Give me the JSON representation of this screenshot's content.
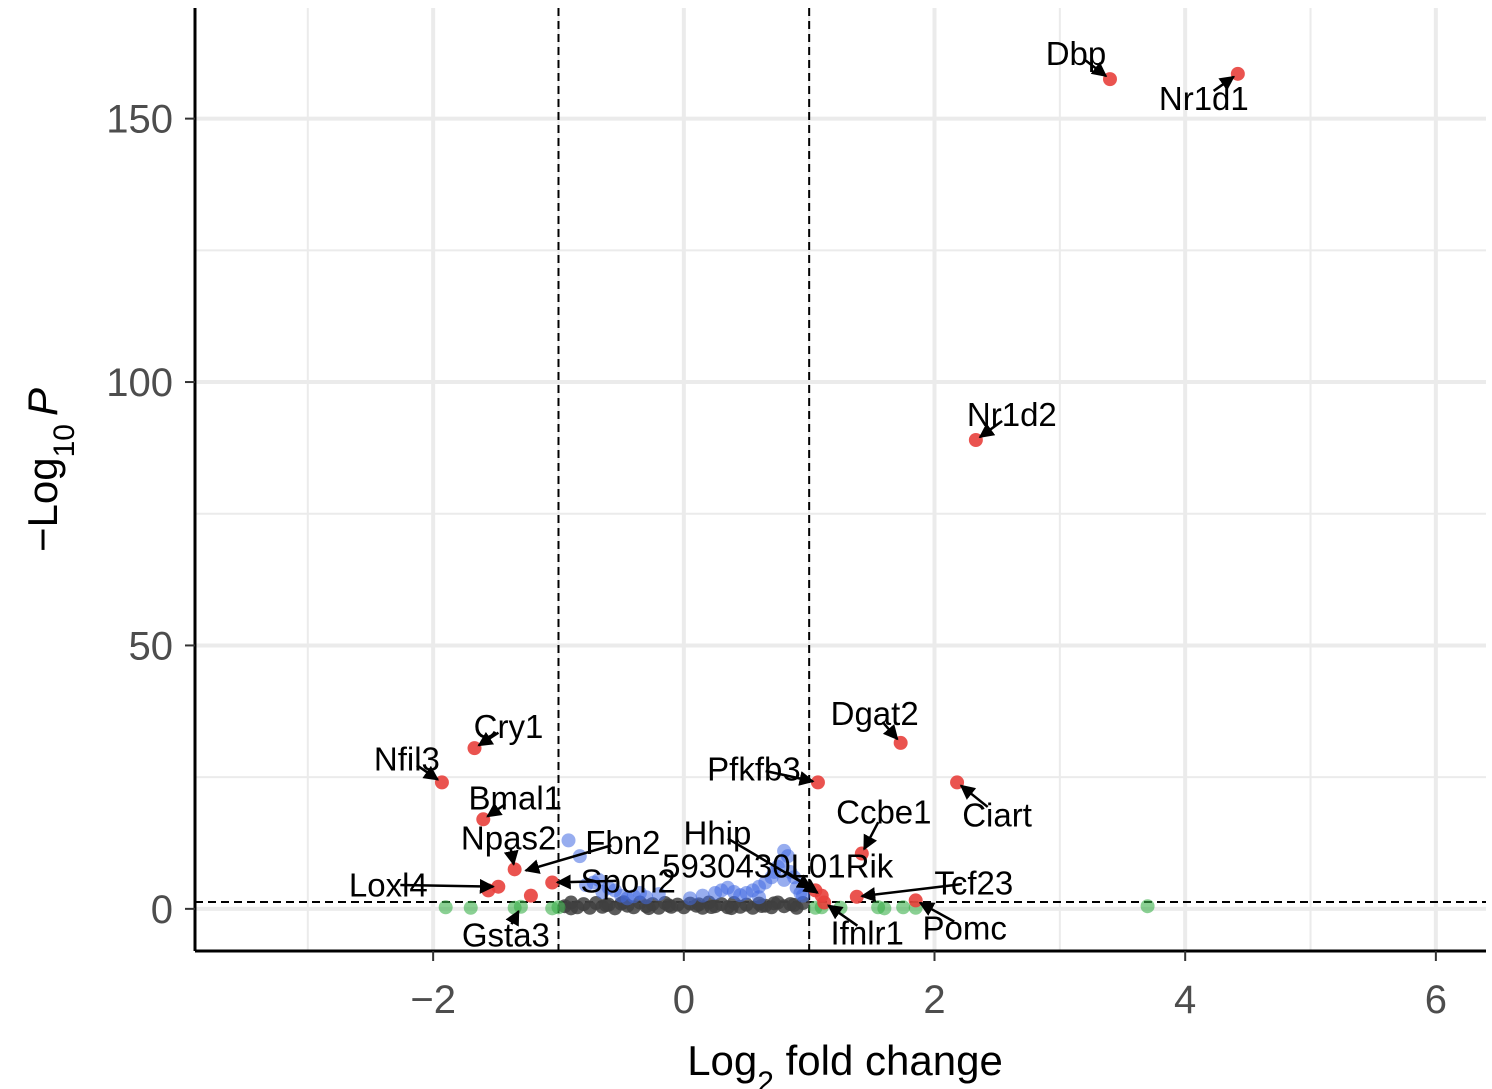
{
  "chart_data": {
    "type": "scatter",
    "title": "",
    "xlabel": "Log2 fold change",
    "xlabel_parts": {
      "pre": "Log",
      "sub": "2",
      "post": " fold change"
    },
    "ylabel": "−Log10 P",
    "ylabel_parts": {
      "pre": "−Log",
      "sub": "10",
      "post": "P"
    },
    "xlim": [
      -3.9,
      6.4
    ],
    "ylim": [
      -8,
      171
    ],
    "xticks": [
      -2,
      0,
      2,
      4,
      6
    ],
    "xtick_labels": [
      "−2",
      "0",
      "2",
      "4",
      "6"
    ],
    "yticks": [
      0,
      50,
      100,
      150
    ],
    "ytick_labels": [
      "0",
      "50",
      "100",
      "150"
    ],
    "grid": true,
    "legend": "none",
    "thresholds": {
      "fc": [
        -1,
        1
      ],
      "p": 1.3
    },
    "colors": {
      "ns": "#404040",
      "log2fc": "#3cb04b",
      "p": "#4169e1",
      "p_and_log2fc": "#e8403c",
      "axis": "#000000",
      "grid": "#ebebeb",
      "threshold_line": "#000000"
    },
    "series": [
      {
        "category": "ns",
        "points": [
          [
            -0.95,
            0.5
          ],
          [
            -0.9,
            1.2
          ],
          [
            -0.85,
            0.3
          ],
          [
            -0.8,
            0.9
          ],
          [
            -0.75,
            0.2
          ],
          [
            -0.7,
            1.1
          ],
          [
            -0.65,
            0.4
          ],
          [
            -0.6,
            0.8
          ],
          [
            -0.55,
            0.1
          ],
          [
            -0.5,
            1.0
          ],
          [
            -0.45,
            0.6
          ],
          [
            -0.4,
            0.3
          ],
          [
            -0.35,
            1.2
          ],
          [
            -0.3,
            0.5
          ],
          [
            -0.25,
            0.9
          ],
          [
            -0.2,
            0.2
          ],
          [
            -0.15,
            1.1
          ],
          [
            -0.1,
            0.4
          ],
          [
            -0.05,
            0.8
          ],
          [
            0.0,
            0.3
          ],
          [
            0.05,
            1.0
          ],
          [
            0.1,
            0.6
          ],
          [
            0.15,
            0.2
          ],
          [
            0.2,
            1.2
          ],
          [
            0.25,
            0.5
          ],
          [
            0.3,
            0.9
          ],
          [
            0.35,
            0.3
          ],
          [
            0.4,
            1.1
          ],
          [
            0.45,
            0.4
          ],
          [
            0.5,
            0.8
          ],
          [
            0.55,
            0.2
          ],
          [
            0.6,
            1.0
          ],
          [
            0.65,
            0.6
          ],
          [
            0.7,
            0.3
          ],
          [
            0.75,
            1.2
          ],
          [
            0.8,
            0.5
          ],
          [
            0.85,
            0.9
          ],
          [
            0.9,
            0.2
          ],
          [
            0.95,
            1.1
          ],
          [
            -0.9,
            0.1
          ],
          [
            -0.62,
            0.7
          ],
          [
            -0.28,
            0.15
          ],
          [
            0.12,
            0.85
          ],
          [
            0.38,
            0.15
          ],
          [
            0.62,
            0.55
          ],
          [
            0.88,
            0.75
          ],
          [
            -0.48,
            1.25
          ],
          [
            0.22,
            0.35
          ],
          [
            0.72,
            1.05
          ],
          [
            -0.12,
            0.65
          ]
        ]
      },
      {
        "category": "p",
        "points": [
          [
            -0.92,
            13
          ],
          [
            -0.83,
            10
          ],
          [
            -0.78,
            4.5
          ],
          [
            -0.72,
            5
          ],
          [
            -0.68,
            5.5
          ],
          [
            -0.6,
            4
          ],
          [
            -0.55,
            3.5
          ],
          [
            -0.5,
            2.5
          ],
          [
            -0.45,
            2
          ],
          [
            -0.35,
            3
          ],
          [
            -0.3,
            2.2
          ],
          [
            -0.2,
            2.8
          ],
          [
            0.05,
            2
          ],
          [
            0.15,
            2.5
          ],
          [
            0.25,
            3
          ],
          [
            0.3,
            3.5
          ],
          [
            0.35,
            4
          ],
          [
            0.4,
            3.2
          ],
          [
            0.45,
            2.6
          ],
          [
            0.5,
            3
          ],
          [
            0.55,
            3.5
          ],
          [
            0.6,
            4.2
          ],
          [
            0.65,
            5
          ],
          [
            0.7,
            6
          ],
          [
            0.72,
            7
          ],
          [
            0.75,
            8
          ],
          [
            0.78,
            9
          ],
          [
            0.8,
            11
          ],
          [
            0.83,
            10
          ],
          [
            0.85,
            7
          ],
          [
            0.88,
            6
          ],
          [
            0.9,
            4
          ],
          [
            0.93,
            3
          ],
          [
            0.95,
            2.5
          ],
          [
            0.8,
            5.5
          ],
          [
            0.6,
            2.2
          ],
          [
            -0.65,
            3.2
          ],
          [
            -0.4,
            2.4
          ]
        ]
      },
      {
        "category": "log2fc",
        "points": [
          [
            -1.9,
            0.3
          ],
          [
            -1.7,
            0.2
          ],
          [
            -1.35,
            0.2
          ],
          [
            -1.3,
            0.4
          ],
          [
            -1.05,
            0.1
          ],
          [
            -1.0,
            0.3
          ],
          [
            1.05,
            0.2
          ],
          [
            1.1,
            0.3
          ],
          [
            1.25,
            0.2
          ],
          [
            1.55,
            0.3
          ],
          [
            1.6,
            0.1
          ],
          [
            1.75,
            0.3
          ],
          [
            1.85,
            0.2
          ],
          [
            3.7,
            0.5
          ]
        ]
      },
      {
        "category": "p_and_log2fc",
        "points": [
          [
            3.4,
            157.5
          ],
          [
            4.42,
            158.5
          ],
          [
            2.33,
            89
          ],
          [
            -1.67,
            30.5
          ],
          [
            -1.93,
            24
          ],
          [
            -1.6,
            17
          ],
          [
            1.73,
            31.5
          ],
          [
            1.07,
            24
          ],
          [
            2.18,
            24
          ],
          [
            1.42,
            10.5
          ],
          [
            1.38,
            2.3
          ],
          [
            1.85,
            1.6
          ],
          [
            1.12,
            1.2
          ],
          [
            1.05,
            3.5
          ],
          [
            1.1,
            2.5
          ],
          [
            -1.35,
            7.5
          ],
          [
            -1.48,
            4.2
          ],
          [
            -1.56,
            3.5
          ],
          [
            -1.22,
            2.5
          ],
          [
            -1.05,
            5
          ]
        ]
      }
    ],
    "labels": [
      {
        "text": "Dbp",
        "x": 3.4,
        "y": 157.5
      },
      {
        "text": "Nr1d1",
        "x": 4.42,
        "y": 158.5
      },
      {
        "text": "Nr1d2",
        "x": 2.33,
        "y": 89
      },
      {
        "text": "Cry1",
        "x": -1.67,
        "y": 30.5
      },
      {
        "text": "Nfil3",
        "x": -1.93,
        "y": 24
      },
      {
        "text": "Bmal1",
        "x": -1.6,
        "y": 17
      },
      {
        "text": "Npas2",
        "x": -1.35,
        "y": 7.5
      },
      {
        "text": "Fbn2",
        "x": -1.3,
        "y": 7
      },
      {
        "text": "Loxl4",
        "x": -1.48,
        "y": 4.2
      },
      {
        "text": "Spon2",
        "x": -1.05,
        "y": 5
      },
      {
        "text": "Gsta3",
        "x": -1.3,
        "y": 0.4
      },
      {
        "text": "Dgat2",
        "x": 1.73,
        "y": 31.5
      },
      {
        "text": "Pfkfb3",
        "x": 1.07,
        "y": 24
      },
      {
        "text": "Ciart",
        "x": 2.18,
        "y": 24
      },
      {
        "text": "Hhip",
        "x": 1.05,
        "y": 3.5
      },
      {
        "text": "Ccbe1",
        "x": 1.42,
        "y": 10.5
      },
      {
        "text": "5930430L01Rik",
        "x": 1.1,
        "y": 2.5
      },
      {
        "text": "Tcf23",
        "x": 1.38,
        "y": 2.3
      },
      {
        "text": "Ifnlr1",
        "x": 1.12,
        "y": 1.2
      },
      {
        "text": "Pomc",
        "x": 1.85,
        "y": 1.6
      }
    ]
  }
}
